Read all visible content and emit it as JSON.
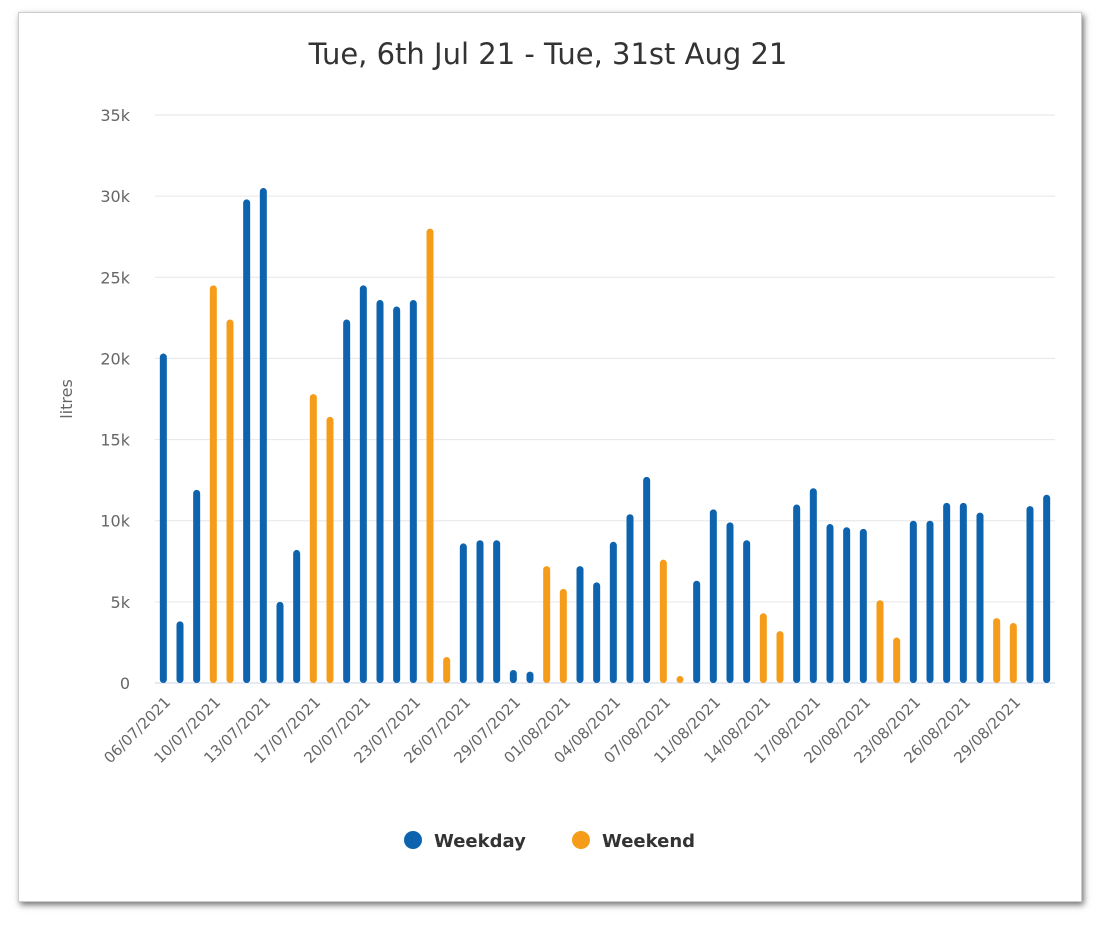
{
  "chart_data": {
    "type": "bar",
    "title": "Tue, 6th Jul 21 - Tue, 31st Aug 21",
    "ylabel": "litres",
    "ylim": [
      0,
      35000
    ],
    "y_ticks": [
      "0",
      "5k",
      "10k",
      "15k",
      "20k",
      "25k",
      "30k",
      "35k"
    ],
    "y_tick_values": [
      0,
      5000,
      10000,
      15000,
      20000,
      25000,
      30000,
      35000
    ],
    "x_tick_labels": [
      "06/07/2021",
      "10/07/2021",
      "13/07/2021",
      "17/07/2021",
      "20/07/2021",
      "23/07/2021",
      "26/07/2021",
      "29/07/2021",
      "01/08/2021",
      "04/08/2021",
      "07/08/2021",
      "11/08/2021",
      "14/08/2021",
      "17/08/2021",
      "20/08/2021",
      "23/08/2021",
      "26/08/2021",
      "29/08/2021"
    ],
    "x_tick_every": 3,
    "grid": true,
    "legend_position": "bottom",
    "series": [
      {
        "name": "Weekday",
        "color": "#0d63ad",
        "values": [
          20300,
          3800,
          11900,
          null,
          null,
          29800,
          30500,
          5000,
          8200,
          null,
          null,
          22400,
          24500,
          23600,
          23200,
          23600,
          null,
          null,
          8600,
          8800,
          8800,
          800,
          700,
          null,
          null,
          7200,
          6200,
          8700,
          10400,
          12700,
          null,
          null,
          6300,
          10700,
          9900,
          8800,
          null,
          null,
          11000,
          12000,
          9800,
          9600,
          9500,
          null,
          null,
          10000,
          10000,
          11100,
          11100,
          10500,
          null,
          null,
          10900,
          11600
        ]
      },
      {
        "name": "Weekend",
        "color": "#f59d1a",
        "values": [
          null,
          null,
          null,
          24500,
          22400,
          null,
          null,
          null,
          null,
          17800,
          16400,
          null,
          null,
          null,
          null,
          null,
          28000,
          1600,
          null,
          null,
          null,
          null,
          null,
          7200,
          5800,
          null,
          null,
          null,
          null,
          null,
          7600,
          300,
          null,
          null,
          null,
          null,
          4300,
          3200,
          null,
          null,
          null,
          null,
          null,
          5100,
          2800,
          null,
          null,
          null,
          null,
          null,
          4000,
          3700,
          null,
          null
        ]
      }
    ]
  }
}
